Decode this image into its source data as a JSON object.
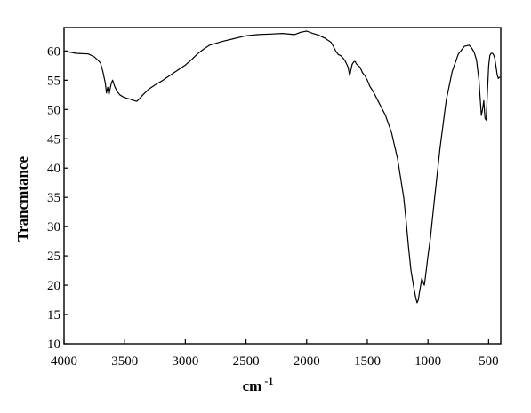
{
  "chart_data": {
    "type": "line",
    "title": "",
    "xlabel": "cm",
    "xlabel_superscript": "-1",
    "ylabel": "Trancmtance",
    "xlim": [
      4000,
      400
    ],
    "ylim": [
      10,
      64
    ],
    "x_reversed": true,
    "grid": false,
    "legend": "none",
    "x_ticks": [
      4000,
      3500,
      3000,
      2500,
      2000,
      1500,
      1000,
      500
    ],
    "y_ticks": [
      10,
      15,
      20,
      25,
      30,
      35,
      40,
      45,
      50,
      55,
      60
    ],
    "series": [
      {
        "color": "#000000",
        "x": [
          4000,
          3900,
          3800,
          3750,
          3700,
          3680,
          3660,
          3650,
          3640,
          3630,
          3620,
          3610,
          3600,
          3580,
          3560,
          3540,
          3500,
          3460,
          3420,
          3400,
          3380,
          3350,
          3300,
          3250,
          3200,
          3100,
          3000,
          2950,
          2900,
          2850,
          2800,
          2700,
          2600,
          2500,
          2400,
          2300,
          2200,
          2100,
          2050,
          2000,
          1950,
          1900,
          1850,
          1800,
          1780,
          1760,
          1740,
          1720,
          1700,
          1680,
          1660,
          1645,
          1635,
          1625,
          1610,
          1600,
          1590,
          1580,
          1560,
          1540,
          1520,
          1500,
          1480,
          1450,
          1400,
          1350,
          1300,
          1250,
          1200,
          1180,
          1160,
          1140,
          1120,
          1100,
          1090,
          1080,
          1070,
          1060,
          1050,
          1040,
          1030,
          1020,
          1000,
          980,
          950,
          900,
          850,
          800,
          750,
          700,
          660,
          640,
          620,
          600,
          580,
          570,
          560,
          550,
          540,
          530,
          520,
          510,
          500,
          490,
          480,
          470,
          460,
          450,
          440,
          430,
          420,
          410,
          405
        ],
        "y": [
          60,
          59.6,
          59.5,
          59,
          58,
          56.5,
          54.5,
          52.8,
          53.8,
          52.5,
          53.5,
          54.5,
          55,
          53.8,
          53,
          52.5,
          52,
          51.8,
          51.5,
          51.4,
          51.8,
          52.5,
          53.5,
          54.2,
          54.8,
          56.2,
          57.6,
          58.5,
          59.5,
          60.3,
          61,
          61.6,
          62.1,
          62.6,
          62.8,
          62.9,
          63,
          62.8,
          63.2,
          63.4,
          63,
          62.7,
          62.2,
          61.5,
          60.8,
          60,
          59.4,
          59.2,
          58.8,
          58.2,
          57.3,
          55.8,
          56.8,
          57.7,
          58.2,
          58.2,
          57.8,
          57.6,
          57.2,
          56.3,
          55.8,
          55,
          54,
          53,
          51,
          49,
          46,
          41.5,
          35,
          31,
          26.5,
          22.5,
          20,
          17.8,
          17,
          17.5,
          18.8,
          20,
          21.2,
          20.5,
          20,
          21.5,
          25,
          28,
          34,
          43.5,
          51.5,
          56.5,
          59.5,
          60.8,
          61,
          60.5,
          59.8,
          58.5,
          55,
          52,
          49,
          50,
          51.5,
          48.5,
          48.2,
          53,
          57.5,
          59.2,
          59.6,
          59.6,
          59.4,
          58.8,
          57.5,
          56,
          55.3,
          55.5,
          55.5
        ]
      }
    ]
  }
}
